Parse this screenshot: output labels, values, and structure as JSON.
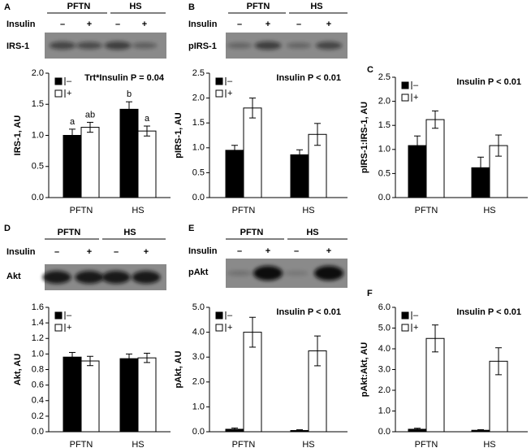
{
  "blots": [
    {
      "groups": [
        "PFTN",
        "HS"
      ],
      "treatment": "Insulin",
      "signs": [
        "–",
        "+",
        "–",
        "+"
      ],
      "protein": "IRS-1"
    },
    {
      "groups": [
        "PFTN",
        "HS"
      ],
      "treatment": "Insulin",
      "signs": [
        "–",
        "+",
        "–",
        "+"
      ],
      "protein": "pIRS-1"
    },
    {
      "groups": [
        "PFTN",
        "HS"
      ],
      "treatment": "Insulin",
      "signs": [
        "–",
        "+",
        "–",
        "+"
      ],
      "protein": "Akt"
    },
    {
      "groups": [
        "PFTN",
        "HS"
      ],
      "treatment": "Insulin",
      "signs": [
        "–",
        "+",
        "–",
        "+"
      ],
      "protein": "pAkt"
    }
  ],
  "chart_data": [
    {
      "type": "bar",
      "panel": "A",
      "title": "Trt*Insulin P = 0.04",
      "ylabel": "IRS-1, AU",
      "categories": [
        "PFTN",
        "HS"
      ],
      "series": [
        {
          "name": "–",
          "color": "#000000",
          "values": [
            1.0,
            1.42
          ],
          "errors": [
            0.1,
            0.12
          ],
          "letters": [
            "a",
            "b"
          ]
        },
        {
          "name": "+",
          "color": "#ffffff",
          "values": [
            1.13,
            1.07
          ],
          "errors": [
            0.08,
            0.08
          ],
          "letters": [
            "ab",
            "a"
          ]
        }
      ],
      "ylim": [
        0,
        2
      ],
      "yticks": [
        {
          "value": 0,
          "label": "0.0"
        },
        0.5,
        {
          "value": 1,
          "label": "1.0"
        },
        1.5,
        {
          "value": 2,
          "label": "2.0"
        }
      ]
    },
    {
      "type": "bar",
      "panel": "B",
      "title": "Insulin P < 0.01",
      "ylabel": "pIRS-1, AU",
      "categories": [
        "PFTN",
        "HS"
      ],
      "series": [
        {
          "name": "–",
          "color": "#000000",
          "values": [
            0.95,
            0.86
          ],
          "errors": [
            0.1,
            0.1
          ]
        },
        {
          "name": "+",
          "color": "#ffffff",
          "values": [
            1.8,
            1.27
          ],
          "errors": [
            0.2,
            0.22
          ]
        }
      ],
      "ylim": [
        0,
        2.5
      ],
      "yticks": [
        {
          "value": 0,
          "label": "0.0"
        },
        0.5,
        {
          "value": 1,
          "label": "1.0"
        },
        1.5,
        {
          "value": 2,
          "label": "2.0"
        },
        2.5
      ]
    },
    {
      "type": "bar",
      "panel": "C",
      "title": "Insulin P < 0.01",
      "ylabel": "pIRS-1:IRS-1, AU",
      "categories": [
        "PFTN",
        "HS"
      ],
      "series": [
        {
          "name": "–",
          "color": "#000000",
          "values": [
            1.08,
            0.62
          ],
          "errors": [
            0.2,
            0.22
          ]
        },
        {
          "name": "+",
          "color": "#ffffff",
          "values": [
            1.62,
            1.08
          ],
          "errors": [
            0.18,
            0.22
          ]
        }
      ],
      "ylim": [
        0,
        2.5
      ],
      "yticks": [
        {
          "value": 0,
          "label": "0.0"
        },
        0.5,
        {
          "value": 1,
          "label": "1.0"
        },
        1.5,
        {
          "value": 2,
          "label": "2.0"
        },
        2.5
      ]
    },
    {
      "type": "bar",
      "panel": "D",
      "ylabel": "Akt, AU",
      "categories": [
        "PFTN",
        "HS"
      ],
      "series": [
        {
          "name": "–",
          "color": "#000000",
          "values": [
            0.96,
            0.94
          ],
          "errors": [
            0.06,
            0.06
          ]
        },
        {
          "name": "+",
          "color": "#ffffff",
          "values": [
            0.91,
            0.95
          ],
          "errors": [
            0.06,
            0.06
          ]
        }
      ],
      "ylim": [
        0,
        1.6
      ],
      "yticks": [
        {
          "value": 0,
          "label": "0.0"
        },
        0.2,
        0.4,
        0.6,
        0.8,
        {
          "value": 1,
          "label": "1.0"
        },
        1.2,
        1.4,
        1.6
      ]
    },
    {
      "type": "bar",
      "panel": "E",
      "title": "Insulin P < 0.01",
      "ylabel": "pAkt, AU",
      "categories": [
        "PFTN",
        "HS"
      ],
      "series": [
        {
          "name": "–",
          "color": "#000000",
          "values": [
            0.1,
            0.05
          ],
          "errors": [
            0.05,
            0.03
          ]
        },
        {
          "name": "+",
          "color": "#ffffff",
          "values": [
            4.0,
            3.25
          ],
          "errors": [
            0.6,
            0.6
          ]
        }
      ],
      "ylim": [
        0,
        5
      ],
      "yticks": [
        {
          "value": 0,
          "label": "0.0"
        },
        {
          "value": 1,
          "label": "1.0"
        },
        {
          "value": 2,
          "label": "2.0"
        },
        {
          "value": 3,
          "label": "3.0"
        },
        {
          "value": 4,
          "label": "4.0"
        },
        {
          "value": 5,
          "label": "5.0"
        }
      ]
    },
    {
      "type": "bar",
      "panel": "F",
      "title": "Insulin P < 0.01",
      "ylabel": "pAkt:Akt, AU",
      "categories": [
        "PFTN",
        "HS"
      ],
      "series": [
        {
          "name": "–",
          "color": "#000000",
          "values": [
            0.12,
            0.07
          ],
          "errors": [
            0.05,
            0.03
          ]
        },
        {
          "name": "+",
          "color": "#ffffff",
          "values": [
            4.5,
            3.4
          ],
          "errors": [
            0.65,
            0.65
          ]
        }
      ],
      "ylim": [
        0,
        6
      ],
      "yticks": [
        {
          "value": 0,
          "label": "0.0"
        },
        {
          "value": 1,
          "label": "1.0"
        },
        {
          "value": 2,
          "label": "2.0"
        },
        {
          "value": 3,
          "label": "3.0"
        },
        {
          "value": 4,
          "label": "4.0"
        },
        {
          "value": 5,
          "label": "5.0"
        },
        {
          "value": 6,
          "label": "6.0"
        }
      ]
    }
  ]
}
